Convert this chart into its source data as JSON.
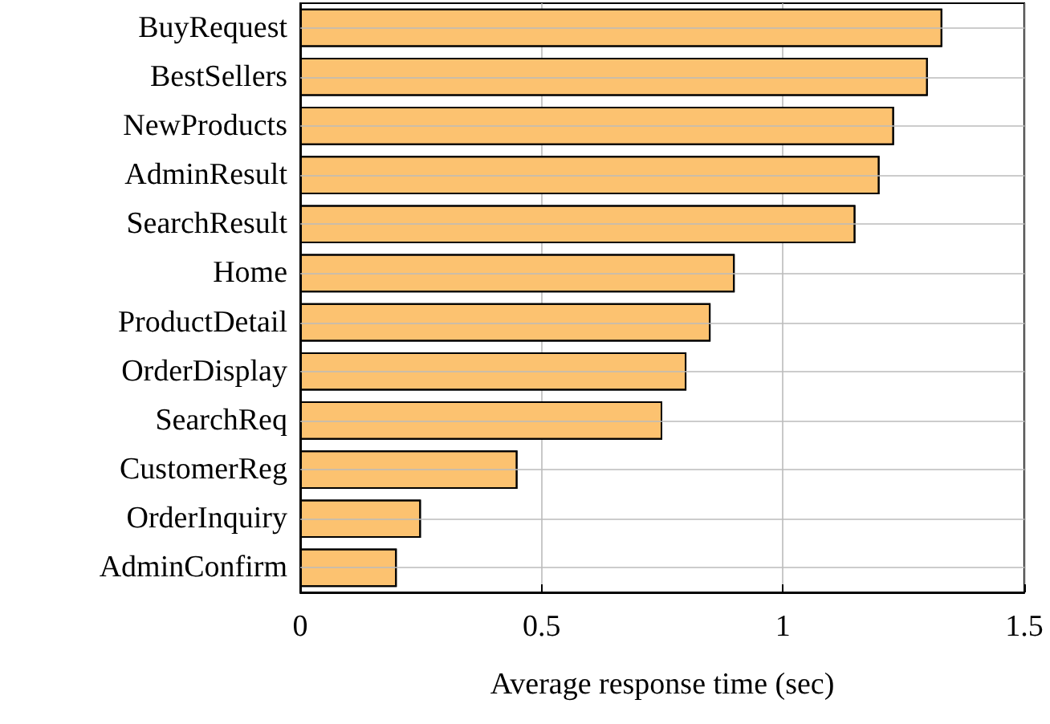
{
  "chart_data": {
    "type": "bar",
    "orientation": "horizontal",
    "xlabel": "Average response time (sec)",
    "categories": [
      "BuyRequest",
      "BestSellers",
      "NewProducts",
      "AdminResult",
      "SearchResult",
      "Home",
      "ProductDetail",
      "OrderDisplay",
      "SearchReq",
      "CustomerReg",
      "OrderInquiry",
      "AdminConfirm"
    ],
    "values": [
      1.33,
      1.3,
      1.23,
      1.2,
      1.15,
      0.9,
      0.85,
      0.8,
      0.75,
      0.45,
      0.25,
      0.2
    ],
    "color": "#fcc270",
    "xlim": [
      0,
      1.5
    ],
    "xticks": [
      0,
      0.5,
      1,
      1.5
    ],
    "grid": true
  }
}
